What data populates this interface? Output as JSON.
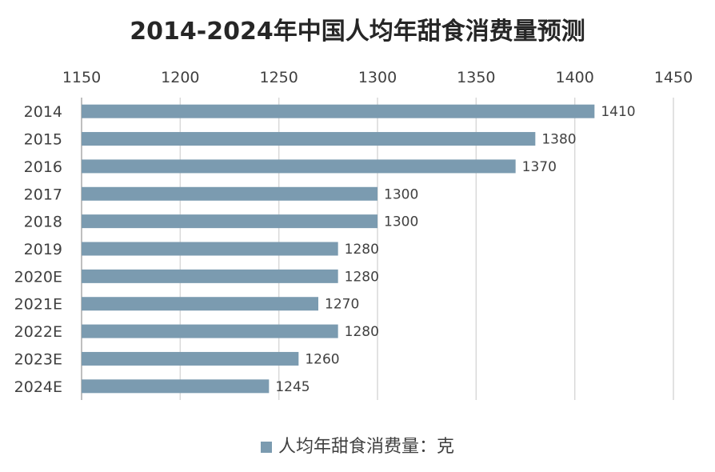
{
  "chart_data": {
    "type": "bar",
    "orientation": "horizontal",
    "title": "2014-2024年中国人均年甜食消费量预测",
    "categories": [
      "2014",
      "2015",
      "2016",
      "2017",
      "2018",
      "2019",
      "2020E",
      "2021E",
      "2022E",
      "2023E",
      "2024E"
    ],
    "series": [
      {
        "name": "人均年甜食消费量：克",
        "values": [
          1410,
          1380,
          1370,
          1300,
          1300,
          1280,
          1280,
          1270,
          1280,
          1260,
          1245
        ]
      }
    ],
    "xlim": [
      1150,
      1450
    ],
    "xticks": [
      1150,
      1200,
      1250,
      1300,
      1350,
      1400,
      1450
    ],
    "x_axis_position": "top",
    "grid": true,
    "legend_position": "bottom",
    "bar_color": "#7b9bb0"
  }
}
